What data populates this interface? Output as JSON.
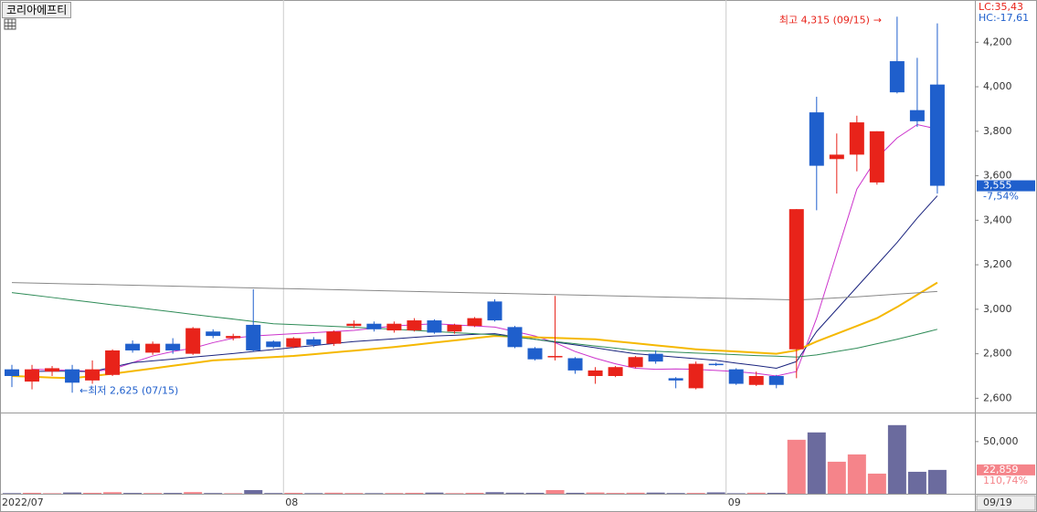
{
  "chart_data": {
    "type": "candlestick",
    "title": "코리아에프티",
    "up_color": "#e8231a",
    "down_color": "#1f5fcc",
    "vol_up_color": "#f5848a",
    "vol_down_color": "#6b6b9e",
    "categories": [
      "2022/07",
      null,
      null,
      null,
      null,
      null,
      null,
      null,
      null,
      null,
      null,
      null,
      null,
      null,
      "08",
      null,
      null,
      null,
      null,
      null,
      null,
      null,
      null,
      null,
      null,
      null,
      null,
      null,
      null,
      null,
      null,
      null,
      null,
      null,
      null,
      null,
      "09",
      null,
      null,
      null,
      null,
      null,
      null,
      null,
      null,
      null,
      null
    ],
    "last_date": "09/19",
    "open": [
      2730,
      2675,
      2720,
      2730,
      2680,
      2705,
      2845,
      2805,
      2845,
      2800,
      2900,
      2870,
      2930,
      2855,
      2830,
      2865,
      2845,
      2925,
      2935,
      2905,
      2905,
      2950,
      2900,
      2925,
      3035,
      2920,
      2825,
      2785,
      2780,
      2700,
      2700,
      2740,
      2800,
      2690,
      2645,
      2755,
      2730,
      2660,
      2700,
      2820,
      3885,
      3675,
      3695,
      3570,
      4115,
      3895,
      4010
    ],
    "high": [
      2750,
      2750,
      2745,
      2750,
      2770,
      2820,
      2860,
      2855,
      2870,
      2920,
      2910,
      2890,
      3090,
      2860,
      2875,
      2875,
      2905,
      2950,
      2945,
      2945,
      2960,
      2955,
      2935,
      2965,
      3045,
      2925,
      2830,
      3060,
      2785,
      2740,
      2745,
      2790,
      2815,
      2695,
      2765,
      2760,
      2735,
      2720,
      2705,
      3450,
      3955,
      3790,
      3870,
      3800,
      4315,
      4130,
      4285
    ],
    "low": [
      2650,
      2640,
      2700,
      2625,
      2665,
      2700,
      2805,
      2795,
      2800,
      2795,
      2870,
      2860,
      2810,
      2825,
      2825,
      2830,
      2835,
      2915,
      2900,
      2895,
      2900,
      2890,
      2890,
      2920,
      2945,
      2825,
      2770,
      2770,
      2710,
      2665,
      2695,
      2735,
      2755,
      2645,
      2640,
      2745,
      2660,
      2655,
      2645,
      2690,
      3445,
      3520,
      3620,
      3560,
      3970,
      3820,
      3520
    ],
    "close": [
      2700,
      2730,
      2735,
      2670,
      2730,
      2815,
      2815,
      2845,
      2815,
      2915,
      2880,
      2880,
      2815,
      2830,
      2870,
      2840,
      2900,
      2935,
      2910,
      2935,
      2950,
      2895,
      2930,
      2960,
      2950,
      2830,
      2775,
      2790,
      2725,
      2725,
      2740,
      2785,
      2765,
      2680,
      2755,
      2750,
      2665,
      2700,
      2660,
      3450,
      3645,
      3695,
      3840,
      3800,
      3975,
      3845,
      3555
    ],
    "volume": [
      600,
      900,
      500,
      1200,
      900,
      1500,
      800,
      700,
      800,
      1600,
      700,
      500,
      3500,
      700,
      900,
      600,
      1000,
      700,
      600,
      700,
      900,
      1100,
      600,
      900,
      1500,
      1000,
      900,
      3500,
      900,
      1200,
      800,
      1000,
      1100,
      700,
      800,
      1300,
      500,
      1000,
      900,
      51750,
      58800,
      30700,
      37700,
      19300,
      65800,
      21050,
      22859
    ],
    "ma_lines": [
      {
        "color": "#cc33cc",
        "values": [
          null,
          2730,
          2728,
          2725,
          2720,
          2730,
          2760,
          2790,
          2810,
          2825,
          2850,
          2870,
          2880,
          2885,
          2890,
          2895,
          2900,
          2905,
          2915,
          2925,
          2930,
          2935,
          2930,
          2925,
          2920,
          2900,
          2880,
          2850,
          2810,
          2780,
          2755,
          2735,
          2730,
          2732,
          2730,
          2725,
          2720,
          2712,
          2700,
          2720,
          2960,
          3250,
          3540,
          3680,
          3770,
          3830,
          3810
        ]
      },
      {
        "color": "#1a237e",
        "values": [
          null,
          2720,
          2722,
          2721,
          2720,
          2740,
          2760,
          2768,
          2776,
          2785,
          2793,
          2801,
          2810,
          2819,
          2828,
          2837,
          2846,
          2855,
          2861,
          2867,
          2874,
          2880,
          2883,
          2887,
          2890,
          2877,
          2865,
          2852,
          2840,
          2827,
          2813,
          2800,
          2793,
          2785,
          2778,
          2770,
          2758,
          2747,
          2735,
          2765,
          2900,
          3000,
          3100,
          3200,
          3300,
          3410,
          3510
        ]
      },
      {
        "color": "#f5b800",
        "values": [
          2700,
          2697,
          2693,
          2690,
          2700,
          2710,
          2722,
          2734,
          2746,
          2758,
          2770,
          2775,
          2780,
          2785,
          2790,
          2798,
          2806,
          2814,
          2822,
          2830,
          2840,
          2850,
          2860,
          2870,
          2880,
          2877,
          2874,
          2871,
          2868,
          2865,
          2856,
          2847,
          2838,
          2829,
          2820,
          2815,
          2810,
          2805,
          2800,
          2815,
          2855,
          2890,
          2925,
          2960,
          3010,
          3065,
          3120
        ]
      },
      {
        "color": "#2e8b57",
        "values": [
          3075,
          3064,
          3053,
          3042,
          3031,
          3020,
          3010,
          2999,
          2988,
          2977,
          2966,
          2956,
          2945,
          2935,
          2931,
          2927,
          2923,
          2919,
          2915,
          2910,
          2905,
          2900,
          2895,
          2890,
          2885,
          2875,
          2865,
          2855,
          2845,
          2835,
          2825,
          2815,
          2811,
          2807,
          2803,
          2800,
          2796,
          2792,
          2789,
          2785,
          2795,
          2810,
          2825,
          2845,
          2865,
          2887,
          2910
        ]
      },
      {
        "color": "#888888",
        "values": [
          3120,
          3118,
          3116,
          3114,
          3112,
          3110,
          3108,
          3106,
          3104,
          3102,
          3100,
          3098,
          3096,
          3094,
          3092,
          3090,
          3088,
          3086,
          3084,
          3082,
          3080,
          3078,
          3076,
          3074,
          3072,
          3070,
          3068,
          3066,
          3064,
          3062,
          3060,
          3058,
          3056,
          3054,
          3052,
          3050,
          3048,
          3046,
          3044,
          3042,
          3046,
          3051,
          3056,
          3062,
          3068,
          3074,
          3080
        ]
      }
    ],
    "ylim": [
      2540,
      4390
    ],
    "yticks": [
      {
        "value": 2600,
        "label": "2,600"
      },
      {
        "value": 2800,
        "label": "2,800"
      },
      {
        "value": 3000,
        "label": "3,000"
      },
      {
        "value": 3200,
        "label": "3,200"
      },
      {
        "value": 3400,
        "label": "3,400"
      },
      {
        "value": 3600,
        "label": "3,600"
      },
      {
        "value": 3800,
        "label": "3,800"
      },
      {
        "value": 4000,
        "label": "4,000"
      },
      {
        "value": 4200,
        "label": "4,200"
      }
    ],
    "vol_ylim": [
      0,
      77000
    ],
    "vol_yticks": [
      {
        "value": 50000,
        "label": "50,000"
      }
    ],
    "last_price_label": "3,555",
    "last_change_label": "-7,54%",
    "last_volume_label": "22,859",
    "last_volume_change_label": "110,74%",
    "lc_label": "LC:35,43",
    "hc_label": "HC:-17,61",
    "high_annotation": "최고 4,315 (09/15)",
    "low_annotation": "←최저 2,625 (07/15)"
  }
}
